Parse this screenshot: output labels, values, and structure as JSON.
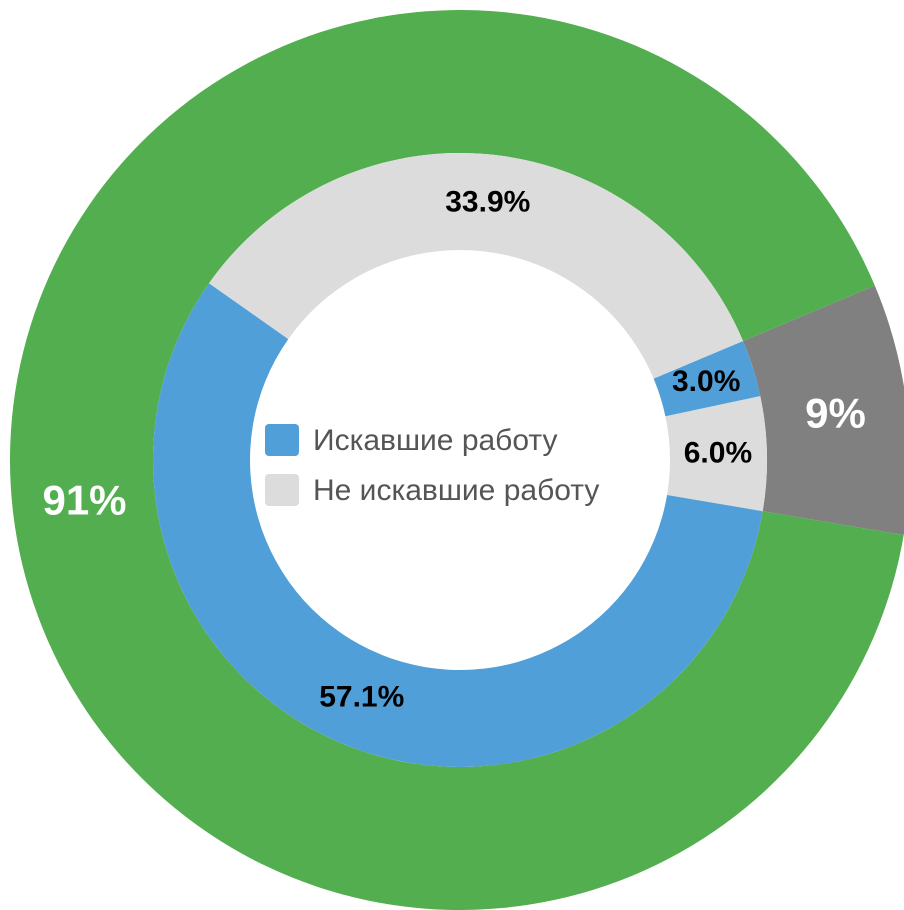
{
  "chart_data": {
    "type": "donut",
    "legend": [
      {
        "name": "Искавшие работу",
        "color": "#519fd8"
      },
      {
        "name": "Не искавшие работу",
        "color": "#dcdcdc"
      }
    ],
    "rings": [
      {
        "values": [
          9,
          91
        ],
        "value_labels": [
          "9%",
          "91%"
        ],
        "colors": [
          "#808080",
          "#52ae4f"
        ]
      },
      {
        "values": [
          3.0,
          6.0,
          57.1,
          33.9
        ],
        "value_labels": [
          "3.0%",
          "6.0%",
          "57.1%",
          "33.9%"
        ],
        "colors": [
          "#519fd8",
          "#dcdcdc",
          "#519fd8",
          "#dcdcdc"
        ]
      }
    ]
  }
}
